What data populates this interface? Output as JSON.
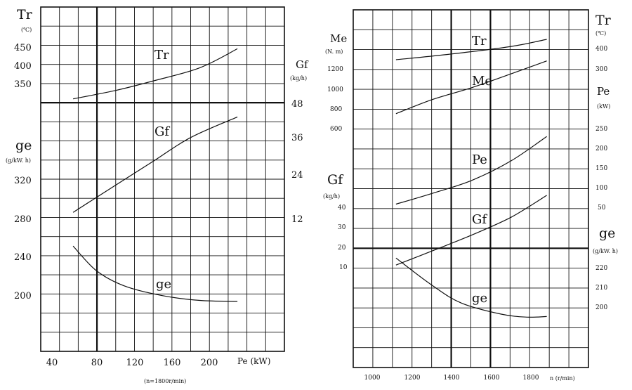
{
  "colors": {
    "ink": "#111111",
    "background": "#ffffff"
  },
  "chart_data": [
    {
      "type": "line",
      "xlabel": "Pe (kW)",
      "x_ticks": [
        "40",
        "80",
        "120",
        "160",
        "200"
      ],
      "footnote": "(n=1800r/min)",
      "left_labels": {
        "tr_symbol": "Tr",
        "tr_unit": "(℃)",
        "tr_ticks": [
          "450",
          "400",
          "350"
        ],
        "ge_symbol": "ge",
        "ge_unit": "(g/kW. h)",
        "ge_ticks": [
          "320",
          "280",
          "240",
          "200"
        ]
      },
      "right_labels": {
        "gf_symbol": "Gf",
        "gf_unit": "(kg/h)",
        "gf_ticks": [
          "48",
          "36",
          "24",
          "12"
        ]
      },
      "series": [
        {
          "name": "Tr",
          "x": [
            55,
            100,
            140,
            190,
            230
          ],
          "y": [
            308,
            330,
            355,
            390,
            440
          ]
        },
        {
          "name": "Gf",
          "x": [
            55,
            100,
            140,
            180,
            230
          ],
          "y": [
            13.5,
            22,
            29.5,
            37,
            43.5
          ]
        },
        {
          "name": "ge",
          "x": [
            55,
            80,
            110,
            150,
            190,
            230
          ],
          "y": [
            250,
            224,
            208,
            198,
            193,
            192
          ]
        }
      ]
    },
    {
      "type": "line",
      "xlabel": "n (r/min)",
      "x_ticks": [
        "1000",
        "1200",
        "1400",
        "1600",
        "1800"
      ],
      "left_labels": {
        "me_symbol": "Me",
        "me_unit": "(N. m)",
        "me_ticks": [
          "1200",
          "1000",
          "800",
          "600"
        ],
        "gf_symbol": "Gf",
        "gf_unit": "(kg/h)",
        "gf_ticks": [
          "40",
          "30",
          "20",
          "10"
        ]
      },
      "right_labels": {
        "tr_symbol": "Tr",
        "tr_unit": "(℃)",
        "tr_ticks": [
          "400",
          "300"
        ],
        "pe_symbol": "Pe",
        "pe_unit": "(kW)",
        "pe_ticks": [
          "250",
          "200",
          "150",
          "100",
          "50"
        ],
        "ge_symbol": "ge",
        "ge_unit": "(g/kW. h)",
        "ge_ticks": [
          "220",
          "210",
          "200"
        ]
      },
      "series": [
        {
          "name": "Tr",
          "x": [
            1120,
            1400,
            1700,
            1880
          ],
          "y": [
            345,
            373,
            410,
            445
          ]
        },
        {
          "name": "Me",
          "x": [
            1120,
            1300,
            1500,
            1700,
            1880
          ],
          "y": [
            750,
            890,
            1010,
            1150,
            1280
          ]
        },
        {
          "name": "Pe",
          "x": [
            1120,
            1300,
            1500,
            1700,
            1880
          ],
          "y": [
            58,
            85,
            118,
            168,
            230
          ]
        },
        {
          "name": "Gf",
          "x": [
            1120,
            1300,
            1500,
            1700,
            1880
          ],
          "y": [
            11,
            18,
            26,
            35,
            46
          ]
        },
        {
          "name": "ge",
          "x": [
            1120,
            1300,
            1450,
            1650,
            1780,
            1880
          ],
          "y": [
            224.5,
            211,
            202,
            196.5,
            195,
            195.3
          ]
        }
      ]
    }
  ]
}
